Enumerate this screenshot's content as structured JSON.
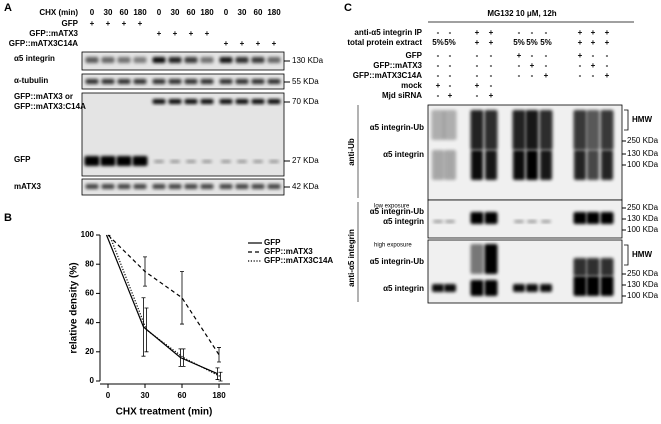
{
  "panel_a": {
    "label": "A",
    "rows": [
      {
        "label": "CHX (min)",
        "cells": [
          "0",
          "30",
          "60",
          "180",
          "0",
          "30",
          "60",
          "180",
          "0",
          "30",
          "60",
          "180"
        ]
      },
      {
        "label": "GFP",
        "cells": [
          "+",
          "+",
          "+",
          "+",
          null,
          null,
          null,
          null,
          null,
          null,
          null,
          null
        ]
      },
      {
        "label": "GFP::mATX3",
        "cells": [
          null,
          null,
          null,
          null,
          "+",
          "+",
          "+",
          "+",
          null,
          null,
          null,
          null
        ]
      },
      {
        "label": "GFP::mATX3C14A",
        "cells": [
          null,
          null,
          null,
          null,
          null,
          null,
          null,
          null,
          "+",
          "+",
          "+",
          "+"
        ]
      }
    ],
    "blots": [
      {
        "labels": [
          "α5 integrin"
        ],
        "markers": [
          "130 KDa"
        ]
      },
      {
        "labels": [
          "α-tubulin"
        ],
        "markers": [
          "55 KDa"
        ]
      },
      {
        "labels": [
          "GFP::mATX3 or",
          "GFP::mATX3:C14A",
          "GFP"
        ],
        "markers": [
          "70 KDa",
          "27 KDa"
        ]
      },
      {
        "labels": [
          "mATX3"
        ],
        "markers": [
          "42 KDa"
        ]
      }
    ]
  },
  "chart_data": {
    "type": "line",
    "panel_label": "B",
    "x_label": "CHX treatment (min)",
    "y_label": "relative density (%)",
    "categories": [
      "0",
      "30",
      "60",
      "180"
    ],
    "ylim": [
      0,
      100
    ],
    "yticks": [
      0,
      20,
      40,
      60,
      80,
      100
    ],
    "series": [
      {
        "name": "GFP",
        "color": "#000000",
        "dash": "solid",
        "values": [
          100,
          37,
          16,
          5
        ],
        "errors": [
          0,
          20,
          6,
          4
        ]
      },
      {
        "name": "GFP::mATX3",
        "color": "#000000",
        "dash": "dashed",
        "values": [
          100,
          75,
          57,
          18
        ],
        "errors": [
          0,
          10,
          18,
          5
        ]
      },
      {
        "name": "GFP::mATX3C14A",
        "color": "#000000",
        "dash": "dotted",
        "values": [
          100,
          35,
          16,
          3
        ],
        "errors": [
          0,
          15,
          6,
          3
        ]
      }
    ]
  },
  "panel_c": {
    "label": "C",
    "title": "MG132 10 μM, 12h",
    "rows": [
      {
        "label": "anti-α5 integrin IP",
        "cells": [
          "-",
          "-",
          "+",
          "+",
          "-",
          "-",
          "-",
          "+",
          "+",
          "+"
        ]
      },
      {
        "label": "total protein extract",
        "cells": [
          "5%",
          "5%",
          "+",
          "+",
          "5%",
          "5%",
          "5%",
          "+",
          "+",
          "+"
        ]
      },
      {
        "label": "GFP",
        "cells": [
          "-",
          "-",
          "-",
          "-",
          "+",
          "-",
          "-",
          "+",
          "-",
          "-"
        ]
      },
      {
        "label": "GFP::mATX3",
        "cells": [
          "-",
          "-",
          "-",
          "-",
          "-",
          "+",
          "-",
          "-",
          "+",
          "-"
        ]
      },
      {
        "label": "GFP::mATX3C14A",
        "cells": [
          "-",
          "-",
          "-",
          "-",
          "-",
          "-",
          "+",
          "-",
          "-",
          "+"
        ]
      },
      {
        "label": "mock",
        "cells": [
          "+",
          "-",
          "+",
          "-",
          null,
          null,
          null,
          null,
          null,
          null
        ]
      },
      {
        "label": "Mjd siRNA",
        "cells": [
          "-",
          "+",
          "-",
          "+",
          null,
          null,
          null,
          null,
          null,
          null
        ]
      }
    ],
    "side_labels": [
      "anti-Ub",
      "anti-α5 integrin"
    ],
    "exposure_labels": [
      "low exposure",
      "high exposure"
    ],
    "blots": [
      {
        "labels": [
          "α5 integrin-Ub",
          "α5 integrin"
        ],
        "markers": [
          "HMW",
          "250 KDa",
          "130 KDa",
          "100 KDa"
        ]
      },
      {
        "labels": [
          "α5 integrin-Ub",
          "α5 integrin"
        ],
        "markers": [
          "250 KDa",
          "130 KDa",
          "100 KDa"
        ]
      },
      {
        "labels": [
          "α5 integrin-Ub",
          "α5 integrin"
        ],
        "markers": [
          "HMW",
          "250 KDa",
          "130 KDa",
          "100 KDa"
        ]
      }
    ]
  }
}
